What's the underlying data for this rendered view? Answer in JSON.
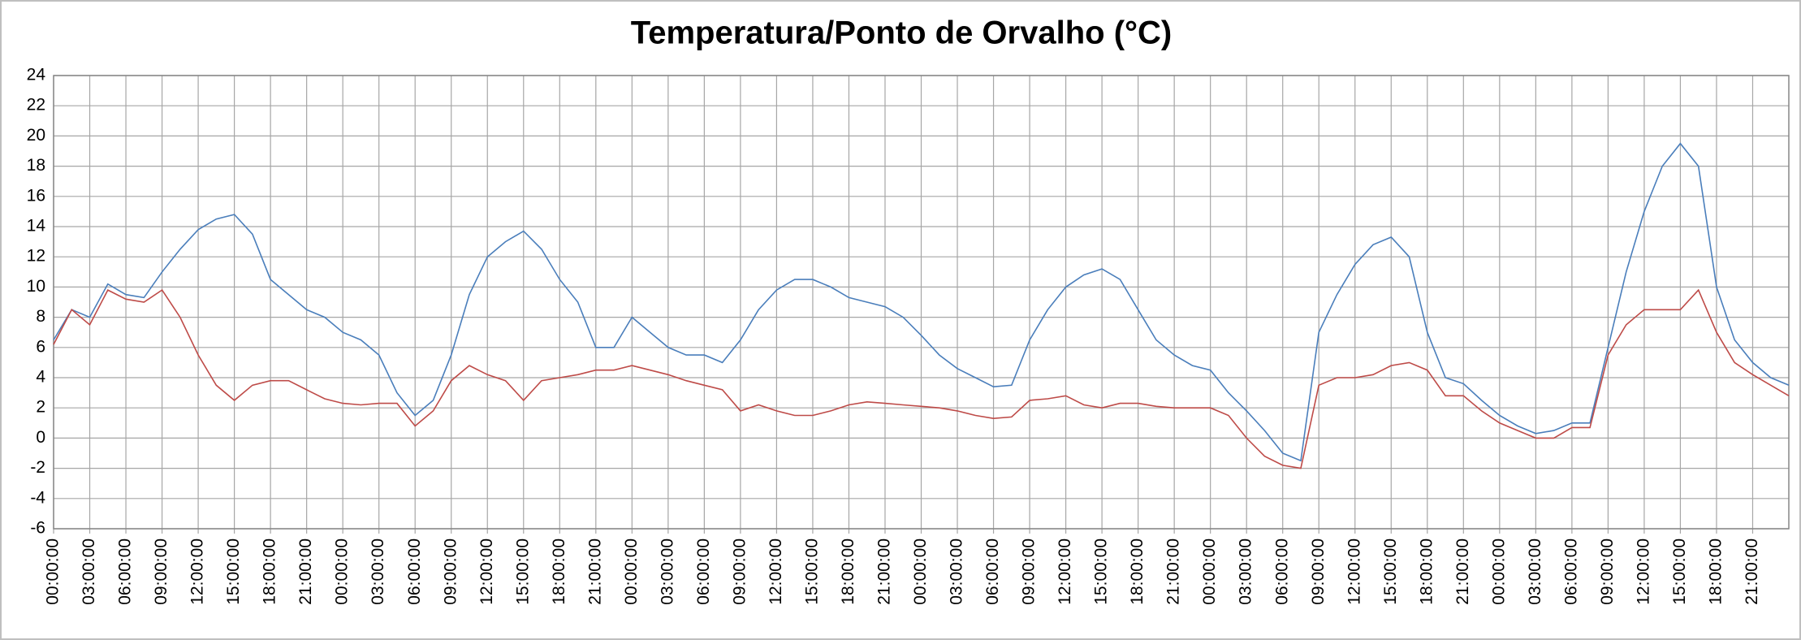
{
  "chart_data": {
    "type": "line",
    "title": "Temperatura/Ponto de Orvalho (°C)",
    "categories": [
      "00:00:00",
      null,
      "03:00:00",
      null,
      "06:00:00",
      null,
      "09:00:00",
      null,
      "12:00:00",
      null,
      "15:00:00",
      null,
      "18:00:00",
      null,
      "21:00:00",
      null,
      "00:00:00",
      null,
      "03:00:00",
      null,
      "06:00:00",
      null,
      "09:00:00",
      null,
      "12:00:00",
      null,
      "15:00:00",
      null,
      "18:00:00",
      null,
      "21:00:00",
      null,
      "00:00:00",
      null,
      "03:00:00",
      null,
      "06:00:00",
      null,
      "09:00:00",
      null,
      "12:00:00",
      null,
      "15:00:00",
      null,
      "18:00:00",
      null,
      "21:00:00",
      null,
      "00:00:00",
      null,
      "03:00:00",
      null,
      "06:00:00",
      null,
      "09:00:00",
      null,
      "12:00:00",
      null,
      "15:00:00",
      null,
      "18:00:00",
      null,
      "21:00:00",
      null,
      "00:00:00",
      null,
      "03:00:00",
      null,
      "06:00:00",
      null,
      "09:00:00",
      null,
      "12:00:00",
      null,
      "15:00:00",
      null,
      "18:00:00",
      null,
      "21:00:00",
      null,
      "00:00:00",
      null,
      "03:00:00",
      null,
      "06:00:00",
      null,
      "09:00:00",
      null,
      "12:00:00",
      null,
      "15:00:00",
      null,
      "18:00:00",
      null,
      "21:00:00",
      null,
      null
    ],
    "series": [
      {
        "color": "#4a7ebb",
        "values": [
          6.5,
          8.5,
          8,
          10.2,
          9.5,
          9.3,
          11,
          12.5,
          13.8,
          14.5,
          14.8,
          13.5,
          10.5,
          9.5,
          8.5,
          8,
          7,
          6.5,
          5.5,
          3,
          1.5,
          2.5,
          5.5,
          9.5,
          12,
          13,
          13.7,
          12.5,
          10.5,
          9,
          6,
          6,
          8,
          7,
          6,
          5.5,
          5.5,
          5,
          6.5,
          8.5,
          9.8,
          10.5,
          10.5,
          10,
          9.3,
          9,
          8.7,
          8,
          6.8,
          5.5,
          4.6,
          4,
          3.4,
          3.5,
          6.5,
          8.5,
          10,
          10.8,
          11.2,
          10.5,
          8.5,
          6.5,
          5.5,
          4.8,
          4.5,
          3,
          1.8,
          0.5,
          -1,
          -1.5,
          7,
          9.5,
          11.5,
          12.8,
          13.3,
          12,
          7,
          4,
          3.6,
          2.5,
          1.5,
          0.8,
          0.3,
          0.5,
          1,
          1,
          6,
          11,
          15,
          18,
          19.5,
          18,
          10,
          6.5,
          5,
          4,
          3.5
        ]
      },
      {
        "color": "#be4b48",
        "values": [
          6.2,
          8.5,
          7.5,
          9.8,
          9.2,
          9,
          9.8,
          8,
          5.5,
          3.5,
          2.5,
          3.5,
          3.8,
          3.8,
          3.2,
          2.6,
          2.3,
          2.2,
          2.3,
          2.3,
          0.8,
          1.8,
          3.8,
          4.8,
          4.2,
          3.8,
          2.5,
          3.8,
          4,
          4.2,
          4.5,
          4.5,
          4.8,
          4.5,
          4.2,
          3.8,
          3.5,
          3.2,
          1.8,
          2.2,
          1.8,
          1.5,
          1.5,
          1.8,
          2.2,
          2.4,
          2.3,
          2.2,
          2.1,
          2,
          1.8,
          1.5,
          1.3,
          1.4,
          2.5,
          2.6,
          2.8,
          2.2,
          2,
          2.3,
          2.3,
          2.1,
          2,
          2,
          2,
          1.5,
          0,
          -1.2,
          -1.8,
          -2,
          3.5,
          4,
          4,
          4.2,
          4.8,
          5,
          4.5,
          2.8,
          2.8,
          1.8,
          1,
          0.5,
          0,
          0,
          0.7,
          0.7,
          5.5,
          7.5,
          8.5,
          8.5,
          8.5,
          9.8,
          7,
          5,
          4.2,
          3.5,
          2.8
        ]
      }
    ],
    "ylim": [
      -6,
      24
    ],
    "yticks": [
      -6,
      -4,
      -2,
      0,
      2,
      4,
      6,
      8,
      10,
      12,
      14,
      16,
      18,
      20,
      22,
      24
    ],
    "grid": true
  }
}
